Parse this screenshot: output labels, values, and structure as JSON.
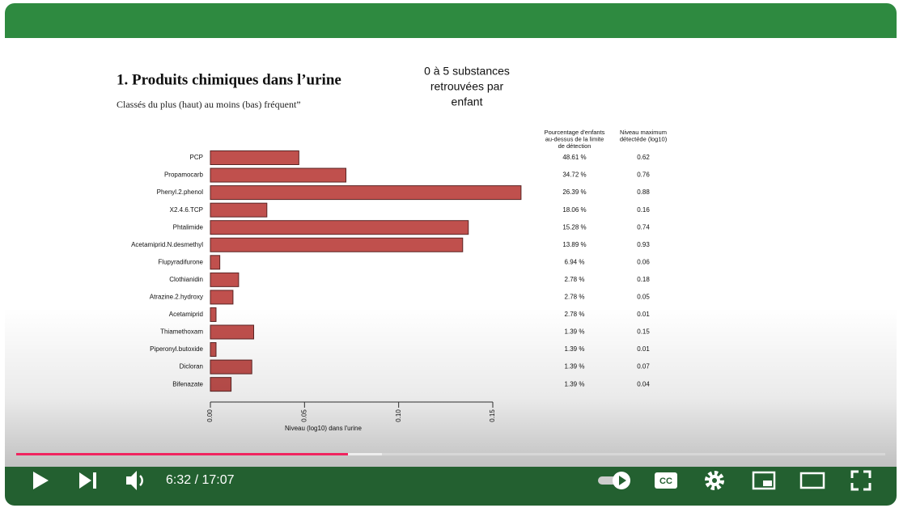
{
  "chart_data": {
    "type": "bar",
    "orientation": "horizontal",
    "title": "1. Produits chimiques dans l’urine",
    "subtitle": "Classés du plus (haut) au moins (bas) fréquent”",
    "annotation": [
      "0 à 5 substances",
      "retrouvées par",
      "enfant"
    ],
    "categories": [
      "PCP",
      "Propamocarb",
      "Phenyl.2.phenol",
      "X2.4.6.TCP",
      "Phtalimide",
      "Acetamiprid.N.desmethyl",
      "Flupyradifurone",
      "Clothianidin",
      "Atrazine.2.hydroxy",
      "Acetamiprid",
      "Thiamethoxam",
      "Piperonyl.butoxide",
      "Dicloran",
      "Bifenazate"
    ],
    "values": [
      0.047,
      0.072,
      0.165,
      0.03,
      0.137,
      0.134,
      0.005,
      0.015,
      0.012,
      0.003,
      0.023,
      0.003,
      0.022,
      0.011
    ],
    "color": "#c0504d",
    "xlim": [
      0,
      0.15
    ],
    "xticks": [
      {
        "value": 0,
        "label": "0.00"
      },
      {
        "value": 0.05,
        "label": "0.05"
      },
      {
        "value": 0.1,
        "label": "0.10"
      },
      {
        "value": 0.15,
        "label": "0.15"
      }
    ],
    "xlabel": "Niveau (log10) dans l'urine",
    "table": {
      "headers": [
        [
          "Pourcentage d'enfants",
          "au-dessus de la limite",
          "de détection"
        ],
        [
          "Niveau maximum",
          "détectéde (log10)"
        ]
      ],
      "columns": [
        [
          "48.61 %",
          "34.72 %",
          "26.39 %",
          "18.06 %",
          "15.28 %",
          "13.89 %",
          "6.94 %",
          "2.78 %",
          "2.78 %",
          "2.78 %",
          "1.39 %",
          "1.39 %",
          "1.39 %",
          "1.39 %"
        ],
        [
          "0.62",
          "0.76",
          "0.88",
          "0.16",
          "0.74",
          "0.93",
          "0.06",
          "0.18",
          "0.05",
          "0.01",
          "0.15",
          "0.01",
          "0.07",
          "0.04"
        ]
      ]
    }
  },
  "player": {
    "time": "6:32 / 17:07"
  }
}
